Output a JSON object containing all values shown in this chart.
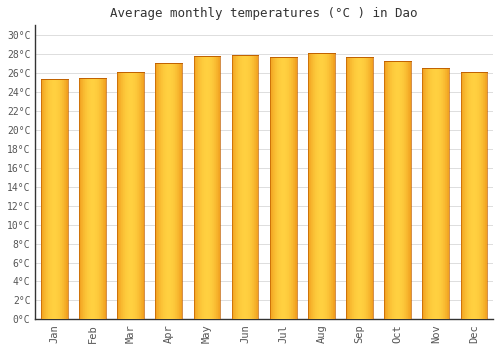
{
  "title": "Average monthly temperatures (°C ) in Dao",
  "months": [
    "Jan",
    "Feb",
    "Mar",
    "Apr",
    "May",
    "Jun",
    "Jul",
    "Aug",
    "Sep",
    "Oct",
    "Nov",
    "Dec"
  ],
  "values": [
    25.3,
    25.4,
    26.1,
    27.0,
    27.8,
    27.9,
    27.7,
    28.1,
    27.7,
    27.2,
    26.5,
    26.1
  ],
  "bar_color": "#FFA500",
  "bar_color_left": "#E8820A",
  "bar_color_mid": "#FFCC33",
  "background_color": "#ffffff",
  "plot_bg_color": "#ffffff",
  "grid_color": "#dddddd",
  "ytick_max": 30,
  "ytick_step": 2,
  "ylim": [
    0,
    31
  ],
  "title_fontsize": 9,
  "tick_fontsize": 7,
  "font_family": "monospace"
}
